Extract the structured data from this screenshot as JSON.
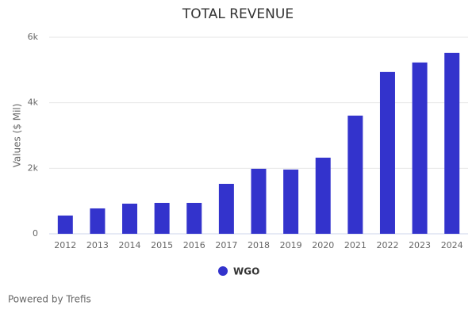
{
  "chart_data": {
    "type": "bar",
    "title": "TOTAL REVENUE",
    "y_label": "Values ($ Mil)",
    "categories": [
      "2012",
      "2013",
      "2014",
      "2015",
      "2016",
      "2017",
      "2018",
      "2019",
      "2020",
      "2021",
      "2022",
      "2023",
      "2024"
    ],
    "series": [
      {
        "name": "WGO",
        "color": "#3333cc",
        "values": [
          557,
          775,
          920,
          944,
          944,
          1525,
          1985,
          1961,
          2324,
          3608,
          4939,
          5230,
          5520
        ]
      }
    ],
    "ylim": [
      0,
      6000
    ],
    "yticks": [
      0,
      {
        "value": 2000,
        "label": "2k"
      },
      {
        "value": 4000,
        "label": "4k"
      },
      {
        "value": 6000,
        "label": "6k"
      }
    ],
    "grid": true,
    "credits": "Powered by Trefis"
  }
}
